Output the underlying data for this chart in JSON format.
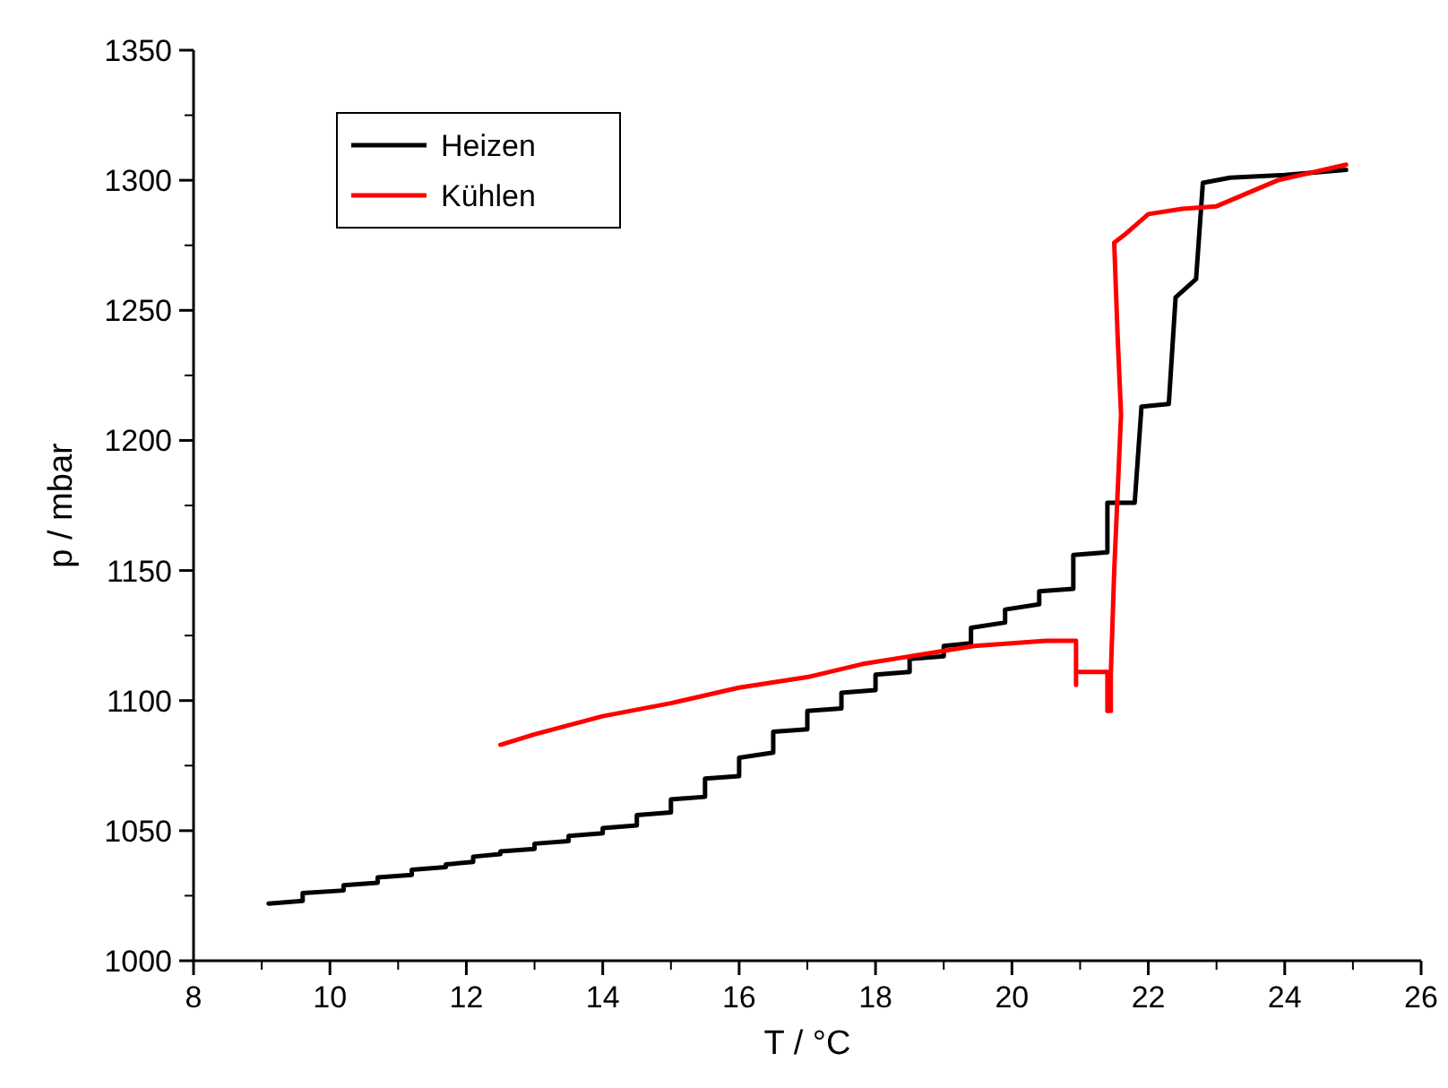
{
  "chart_data": {
    "type": "line",
    "xlabel": "T / °C",
    "ylabel": "p / mbar",
    "xlim": [
      8,
      26
    ],
    "xticks": [
      8,
      10,
      12,
      14,
      16,
      18,
      20,
      22,
      24,
      26
    ],
    "ylim": [
      1000,
      1350
    ],
    "yticks": [
      1000,
      1050,
      1100,
      1150,
      1200,
      1250,
      1300,
      1350
    ],
    "legend": "top left",
    "marker": "none",
    "line_style": "solid",
    "series": [
      {
        "name": "Heizen",
        "color": "#000000",
        "x": [
          9.1,
          9.6,
          9.6,
          10.2,
          10.2,
          10.7,
          10.7,
          11.2,
          11.2,
          11.7,
          11.7,
          12.1,
          12.1,
          12.5,
          12.5,
          13.0,
          13.0,
          13.5,
          13.5,
          14.0,
          14.0,
          14.5,
          14.5,
          15.0,
          15.0,
          15.5,
          15.5,
          16.0,
          16.0,
          16.5,
          16.5,
          17.0,
          17.0,
          17.5,
          17.5,
          18.0,
          18.0,
          18.5,
          18.5,
          19.0,
          19.0,
          19.4,
          19.4,
          19.9,
          19.9,
          20.4,
          20.4,
          20.9,
          20.9,
          21.4,
          21.4,
          21.8,
          21.9,
          22.3,
          22.4,
          22.7,
          22.8,
          23.2,
          24.0,
          24.9
        ],
        "values": [
          1022,
          1023,
          1026,
          1027,
          1029,
          1030,
          1032,
          1033,
          1035,
          1036,
          1037,
          1038,
          1040,
          1041,
          1042,
          1043,
          1045,
          1046,
          1048,
          1049,
          1051,
          1052,
          1056,
          1057,
          1062,
          1063,
          1070,
          1071,
          1078,
          1080,
          1088,
          1089,
          1096,
          1097,
          1103,
          1104,
          1110,
          1111,
          1116,
          1117,
          1121,
          1122,
          1128,
          1130,
          1135,
          1137,
          1142,
          1143,
          1156,
          1157,
          1176,
          1176,
          1213,
          1214,
          1255,
          1262,
          1299,
          1301,
          1302,
          1304
        ]
      },
      {
        "name": "Kühlen",
        "color": "#ff0000",
        "x": [
          24.9,
          23.9,
          23.0,
          22.5,
          22.0,
          21.65,
          21.5,
          21.55,
          21.6,
          21.5,
          21.45,
          21.45,
          21.4,
          21.4,
          20.94,
          20.94,
          20.94,
          20.5,
          19.45,
          18.5,
          17.8,
          17.0,
          16.0,
          15.0,
          14.0,
          13.0,
          12.5
        ],
        "values": [
          1306,
          1300,
          1290,
          1289,
          1287,
          1279,
          1276,
          1240,
          1210,
          1150,
          1110,
          1096,
          1096,
          1111,
          1111,
          1106,
          1123,
          1123,
          1121,
          1117,
          1114,
          1109,
          1105,
          1099,
          1094,
          1087,
          1083
        ]
      }
    ]
  }
}
